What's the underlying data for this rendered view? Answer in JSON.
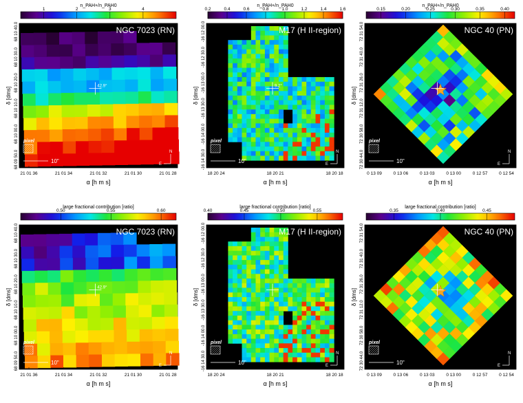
{
  "figure": {
    "panels": [
      {
        "row": 0,
        "col": 0,
        "shape": "square",
        "star": false,
        "title": "NGC 7023 (RN)",
        "cbar_label": "n_PAH+/n_PAH0",
        "cbar_ticks": [
          "1",
          "2",
          "3",
          "4"
        ],
        "cbar_range": [
          0.3,
          5.0
        ],
        "ylabel": "δ [dms]",
        "xlabel": "α [h m s]",
        "yticks": [
          "68 10 40.0",
          "68 10 30.0",
          "68 10 20.0",
          "68 10 10.0",
          "68 10 00.0",
          "68 09 50.0"
        ],
        "xticks": [
          "21 01 36",
          "21 01 34",
          "21 01 32",
          "21 01 30",
          "21 01 28"
        ],
        "scalebar": "10\"",
        "pixel_label": "pixel",
        "angle_label": "42.9°",
        "compass": {
          "n": "N",
          "e": "E"
        }
      },
      {
        "row": 0,
        "col": 1,
        "shape": "m17",
        "star": false,
        "title": "M17 (H II-region)",
        "cbar_label": "n_PAH+/n_PAH0",
        "cbar_ticks": [
          "0.2",
          "0.4",
          "0.6",
          "0.8",
          "1.0",
          "1.2",
          "1.4",
          "1.6"
        ],
        "cbar_range": [
          0.2,
          1.6
        ],
        "ylabel": "δ [dms]",
        "xlabel": "α [h m s]",
        "yticks": [
          "-16 12 00.0",
          "-16 12 30.0",
          "-16 13 00.0",
          "-16 13 30.0",
          "-16 14 00.0",
          "-16 14 30.0"
        ],
        "xticks": [
          "18 20 24",
          "18 20 21",
          "18 20 18"
        ],
        "scalebar": "10\"",
        "pixel_label": "pixel",
        "angle_label": "9.2°",
        "compass": {
          "n": "N",
          "e": "E"
        }
      },
      {
        "row": 0,
        "col": 2,
        "shape": "diamond",
        "star": true,
        "title": "NGC 40 (PN)",
        "cbar_label": "n_PAH+/n_PAH0",
        "cbar_ticks": [
          "0.15",
          "0.20",
          "0.25",
          "0.30",
          "0.35",
          "0.40"
        ],
        "cbar_range": [
          0.12,
          0.42
        ],
        "ylabel": "δ [dms]",
        "xlabel": "α [h m s]",
        "yticks": [
          "72 31 54.0",
          "72 31 40.0",
          "72 31 26.0",
          "72 31 12.0",
          "72 30 58.0",
          "72 30 44.0"
        ],
        "xticks": [
          "0 13 09",
          "0 13 06",
          "0 13 03",
          "0 13 00",
          "0 12 57",
          "0 12 54"
        ],
        "scalebar": "10\"",
        "pixel_label": "pixel",
        "angle_label": "",
        "compass": {
          "n": "N",
          "e": "E"
        }
      },
      {
        "row": 1,
        "col": 0,
        "shape": "square",
        "star": false,
        "title": "NGC 7023 (RN)",
        "cbar_label": "large fractional contribution [ratio]",
        "cbar_ticks": [
          "0.50",
          "0.55",
          "0.60"
        ],
        "cbar_range": [
          0.46,
          0.615
        ],
        "ylabel": "δ [dms]",
        "xlabel": "α [h m s]",
        "yticks": [
          "68 10 40.0",
          "68 10 30.0",
          "68 10 20.0",
          "68 10 10.0",
          "68 10 00.0",
          "68 09 50.0"
        ],
        "xticks": [
          "21 01 36",
          "21 01 34",
          "21 01 32",
          "21 01 30",
          "21 01 28"
        ],
        "scalebar": "10\"",
        "pixel_label": "pixel",
        "angle_label": "42.9°",
        "compass": {
          "n": "N",
          "e": "E"
        }
      },
      {
        "row": 1,
        "col": 1,
        "shape": "m17",
        "star": false,
        "title": "M17 (H II-region)",
        "cbar_label": "large fractional contribution [ratio]",
        "cbar_ticks": [
          "0.40",
          "0.45",
          "0.50",
          "0.55"
        ],
        "cbar_range": [
          0.4,
          0.585
        ],
        "ylabel": "δ [dms]",
        "xlabel": "α [h m s]",
        "yticks": [
          "-16 12 00.0",
          "-16 12 30.0",
          "-16 13 00.0",
          "-16 13 30.0",
          "-16 14 00.0",
          "-16 14 30.0"
        ],
        "xticks": [
          "18 20 24",
          "18 20 21",
          "18 20 18"
        ],
        "scalebar": "10\"",
        "pixel_label": "pixel",
        "angle_label": "",
        "compass": {
          "n": "N",
          "e": "E"
        }
      },
      {
        "row": 1,
        "col": 2,
        "shape": "diamond",
        "star": true,
        "title": "NGC 40 (PN)",
        "cbar_label": "large fractional contribution [ratio]",
        "cbar_ticks": [
          "0.35",
          "0.40",
          "0.45"
        ],
        "cbar_range": [
          0.32,
          0.48
        ],
        "ylabel": "δ [dms]",
        "xlabel": "α [h m s]",
        "yticks": [
          "72 31 54.0",
          "72 31 40.0",
          "72 31 26.0",
          "72 31 12.0",
          "72 30 58.0",
          "72 30 44.0"
        ],
        "xticks": [
          "0 13 09",
          "0 13 06",
          "0 13 03",
          "0 13 00",
          "0 12 57",
          "0 12 54"
        ],
        "scalebar": "10\"",
        "pixel_label": "pixel",
        "angle_label": "",
        "compass": {
          "n": "N",
          "e": "E"
        }
      }
    ]
  },
  "chart_data": [
    {
      "type": "heatmap",
      "title": "NGC 7023 (RN)",
      "colorbar": "n_PAH+/n_PAH0",
      "range": [
        0.3,
        5.0
      ],
      "trend": "low (~0.5) in north rows, rising to ~4.5 in south rows"
    },
    {
      "type": "heatmap",
      "title": "M17 (H II-region)",
      "colorbar": "n_PAH+/n_PAH0",
      "range": [
        0.2,
        1.6
      ],
      "trend": "mostly ~0.9-1.1 with high (~1.5) pixels in southeast"
    },
    {
      "type": "heatmap",
      "title": "NGC 40 (PN)",
      "colorbar": "n_PAH+/n_PAH0",
      "range": [
        0.12,
        0.42
      ],
      "trend": "low (~0.2) interior, higher (~0.35-0.40) rim, star at centre"
    },
    {
      "type": "heatmap",
      "title": "NGC 7023 (RN)",
      "colorbar": "large fractional contribution [ratio]",
      "range": [
        0.46,
        0.615
      ],
      "trend": "low (~0.48) north, ~0.55-0.57 south"
    },
    {
      "type": "heatmap",
      "title": "M17 (H II-region)",
      "colorbar": "large fractional contribution [ratio]",
      "range": [
        0.4,
        0.585
      ],
      "trend": "mostly ~0.50, high pixels in southeast"
    },
    {
      "type": "heatmap",
      "title": "NGC 40 (PN)",
      "colorbar": "large fractional contribution [ratio]",
      "range": [
        0.32,
        0.48
      ],
      "trend": "~0.40 interior with ~0.45 rim"
    }
  ]
}
